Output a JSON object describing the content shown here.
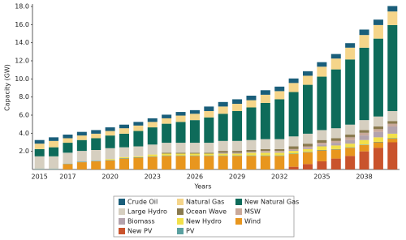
{
  "chart_data": {
    "type": "stacked_bar",
    "x_label": "Years",
    "y_label": "Capacity (GW)",
    "categories": [
      "2015",
      null,
      "2017",
      null,
      null,
      "2020",
      null,
      null,
      "2023",
      null,
      null,
      "2026",
      null,
      null,
      "2029",
      null,
      null,
      "2032",
      null,
      null,
      "2035",
      null,
      null,
      "2038",
      null,
      null
    ],
    "ylim": [
      0,
      18
    ],
    "yticks": [
      {
        "value": 2,
        "label": "2.0"
      },
      {
        "value": 4,
        "label": "4.0"
      },
      {
        "value": 6,
        "label": "6.0"
      },
      {
        "value": 8,
        "label": "8.0"
      },
      {
        "value": 10,
        "label": "10.0"
      },
      {
        "value": 12,
        "label": "12.0"
      },
      {
        "value": 14,
        "label": "14.0"
      },
      {
        "value": 16,
        "label": "16.0"
      },
      {
        "value": 18,
        "label": "18.0"
      }
    ],
    "series": [
      {
        "name": "New PV",
        "color": "#c9532c",
        "values": [
          0,
          0,
          0,
          0,
          0,
          0,
          0,
          0,
          0,
          0,
          0,
          0,
          0,
          0,
          0,
          0,
          0,
          0,
          0.3,
          0.6,
          0.9,
          1.2,
          1.5,
          2.0,
          2.4,
          3.0
        ]
      },
      {
        "name": "Wind",
        "color": "#e8961e",
        "values": [
          0,
          0,
          0.6,
          0.8,
          0.9,
          1.0,
          1.2,
          1.3,
          1.4,
          1.5,
          1.5,
          1.5,
          1.5,
          1.5,
          1.5,
          1.5,
          1.5,
          1.5,
          1.4,
          1.3,
          1.2,
          1.0,
          0.9,
          0.7,
          0.6,
          0.4
        ]
      },
      {
        "name": "PV",
        "color": "#5aa0a0",
        "values": [
          0.05,
          0.05,
          0.05,
          0.05,
          0.05,
          0.05,
          0.05,
          0.05,
          0.05,
          0.05,
          0.05,
          0.05,
          0.05,
          0.05,
          0.05,
          0.05,
          0.05,
          0.05,
          0.05,
          0.05,
          0.05,
          0.05,
          0.05,
          0.05,
          0.05,
          0.05
        ]
      },
      {
        "name": "New Hydro",
        "color": "#f2e04a",
        "values": [
          0,
          0,
          0,
          0,
          0,
          0.1,
          0.1,
          0.1,
          0.2,
          0.2,
          0.2,
          0.2,
          0.2,
          0.2,
          0.2,
          0.3,
          0.3,
          0.3,
          0.3,
          0.3,
          0.4,
          0.4,
          0.4,
          0.5,
          0.5,
          0.5
        ]
      },
      {
        "name": "Biomass",
        "color": "#b3a3ad",
        "values": [
          0,
          0,
          0,
          0,
          0,
          0,
          0,
          0,
          0,
          0,
          0,
          0,
          0,
          0.1,
          0.1,
          0.1,
          0.1,
          0.1,
          0.1,
          0.1,
          0.2,
          0.3,
          0.4,
          0.5,
          0.6,
          0.8
        ]
      },
      {
        "name": "MSW",
        "color": "#c9a99a",
        "values": [
          0,
          0,
          0,
          0,
          0,
          0,
          0,
          0,
          0,
          0,
          0,
          0,
          0,
          0,
          0,
          0,
          0.1,
          0.1,
          0.1,
          0.2,
          0.2,
          0.2,
          0.3,
          0.3,
          0.3,
          0.3
        ]
      },
      {
        "name": "Ocean Wave",
        "color": "#8a7a4e",
        "values": [
          0,
          0,
          0,
          0,
          0,
          0,
          0,
          0,
          0,
          0.1,
          0.1,
          0.1,
          0.1,
          0.2,
          0.2,
          0.2,
          0.2,
          0.2,
          0.3,
          0.3,
          0.3,
          0.3,
          0.3,
          0.3,
          0.3,
          0.3
        ]
      },
      {
        "name": "Large Hydro",
        "color": "#d6cfc0",
        "values": [
          1.4,
          1.4,
          1.2,
          1.2,
          1.2,
          1.2,
          1.1,
          1.1,
          1.1,
          1.1,
          1.1,
          1.1,
          1.1,
          1.1,
          1.1,
          1.1,
          1.1,
          1.1,
          1.1,
          1.1,
          1.1,
          1.1,
          1.1,
          1.1,
          1.1,
          1.1
        ]
      },
      {
        "name": "New Natural Gas",
        "color": "#0e6b5a",
        "values": [
          0.8,
          1.0,
          1.1,
          1.2,
          1.3,
          1.4,
          1.5,
          1.7,
          1.9,
          2.1,
          2.3,
          2.5,
          2.8,
          3.0,
          3.3,
          3.6,
          4.0,
          4.4,
          4.9,
          5.4,
          5.9,
          6.5,
          7.2,
          8.0,
          8.6,
          9.5
        ]
      },
      {
        "name": "Natural Gas",
        "color": "#f5d58a",
        "values": [
          0.6,
          0.7,
          0.5,
          0.5,
          0.5,
          0.5,
          0.6,
          0.6,
          0.6,
          0.6,
          0.7,
          0.7,
          0.7,
          0.8,
          0.8,
          0.8,
          0.9,
          0.9,
          1.0,
          1.0,
          1.1,
          1.2,
          1.3,
          1.4,
          1.5,
          1.5
        ]
      },
      {
        "name": "Crude Oil",
        "color": "#1a5e7a",
        "values": [
          0.4,
          0.4,
          0.4,
          0.4,
          0.4,
          0.4,
          0.4,
          0.4,
          0.4,
          0.4,
          0.4,
          0.4,
          0.5,
          0.5,
          0.5,
          0.5,
          0.5,
          0.5,
          0.5,
          0.5,
          0.5,
          0.5,
          0.5,
          0.6,
          0.6,
          0.6
        ]
      }
    ]
  }
}
